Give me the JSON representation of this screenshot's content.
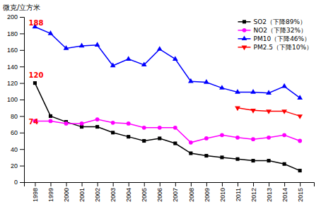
{
  "chart_data": {
    "type": "line",
    "ylabel": "微克/立方米",
    "x": [
      1998,
      1999,
      2000,
      2001,
      2002,
      2003,
      2004,
      2005,
      2006,
      2007,
      2008,
      2009,
      2010,
      2011,
      2012,
      2013,
      2014,
      2015
    ],
    "series": [
      {
        "name": "SO2（下降89%）",
        "color": "#000000",
        "marker": "square",
        "values": [
          120,
          80,
          73,
          67,
          67,
          60,
          55,
          50,
          53,
          47,
          35,
          32,
          30,
          28,
          26,
          26,
          22,
          14
        ]
      },
      {
        "name": "NO2（下降32%）",
        "color": "#ff00ff",
        "marker": "circle",
        "values": [
          74,
          74,
          71,
          71,
          76,
          72,
          71,
          66,
          66,
          66,
          48,
          53,
          57,
          54,
          52,
          54,
          57,
          50
        ]
      },
      {
        "name": "PM10（下降46%）",
        "color": "#0000ff",
        "marker": "triangle-up",
        "values": [
          188,
          180,
          162,
          165,
          166,
          141,
          149,
          142,
          161,
          149,
          122,
          121,
          114,
          109,
          109,
          108,
          116,
          102
        ]
      },
      {
        "name": "PM2.5（下降10%）",
        "color": "#ff0000",
        "marker": "triangle-down",
        "values": [
          null,
          null,
          null,
          null,
          null,
          null,
          null,
          null,
          null,
          null,
          null,
          null,
          null,
          90,
          87,
          86,
          86,
          80
        ]
      }
    ],
    "xlim": [
      1997.3,
      2015.9
    ],
    "xticks": [
      1998,
      1999,
      2000,
      2001,
      2002,
      2003,
      2004,
      2005,
      2006,
      2007,
      2008,
      2009,
      2010,
      2011,
      2012,
      2013,
      2014,
      2015
    ],
    "ylim": [
      0,
      200
    ],
    "yticks": [
      0,
      20,
      40,
      60,
      80,
      100,
      120,
      140,
      160,
      180,
      200
    ],
    "annotations": [
      {
        "text": "120",
        "x": 1997.6,
        "y": 125,
        "color": "#ff0000"
      },
      {
        "text": "188",
        "x": 1997.6,
        "y": 188,
        "color": "#ff0000"
      },
      {
        "text": "74",
        "x": 1997.6,
        "y": 68,
        "color": "#ff0000"
      }
    ],
    "legend": "upper right",
    "grid": false
  }
}
